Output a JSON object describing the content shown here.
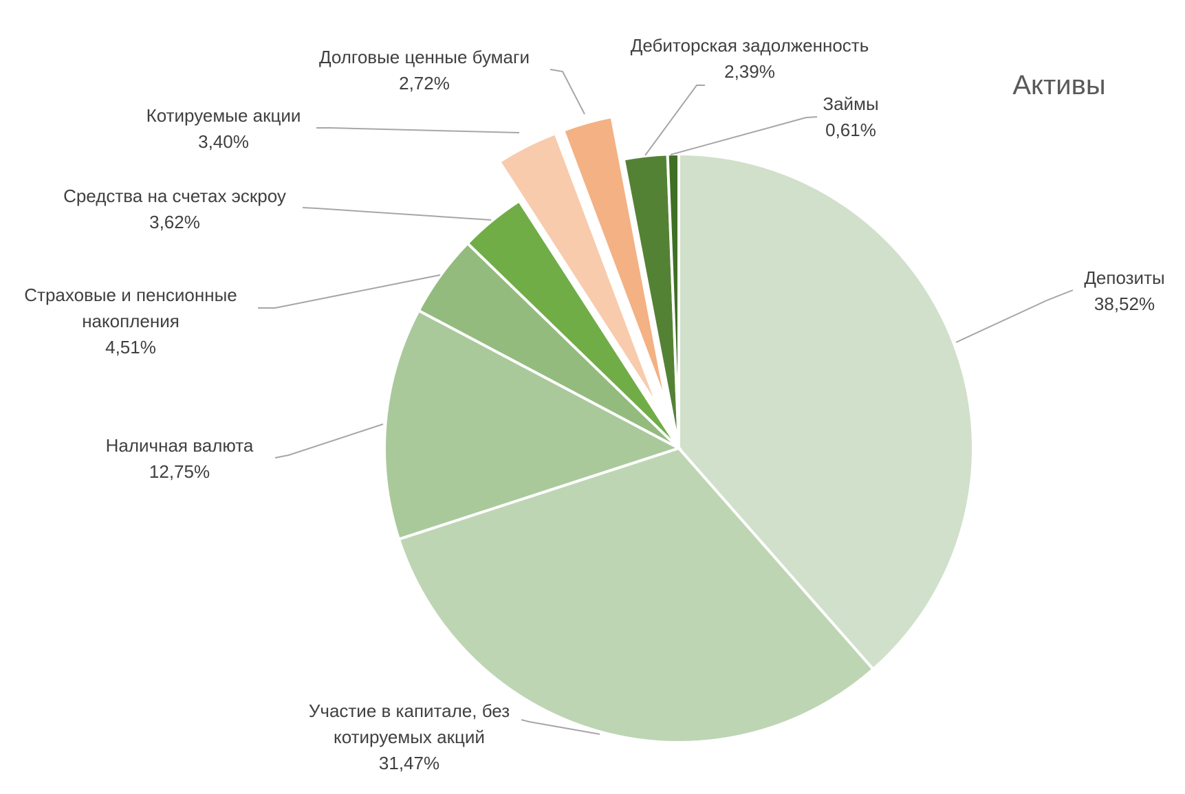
{
  "chart_data": {
    "type": "pie",
    "title": "Активы",
    "slices": [
      {
        "name": "Депозиты",
        "percent_label": "38,52%",
        "value": 38.52,
        "color": "#d0e0ca",
        "exploded": false,
        "name_lines": [
          "Депозиты"
        ]
      },
      {
        "name": "Участие в капитале, без котируемых акций",
        "percent_label": "31,47%",
        "value": 31.47,
        "color": "#bdd5b3",
        "exploded": false,
        "name_lines": [
          "Участие в капитале, без",
          "котируемых акций"
        ]
      },
      {
        "name": "Наличная валюта",
        "percent_label": "12,75%",
        "value": 12.75,
        "color": "#a9c99b",
        "exploded": false,
        "name_lines": [
          "Наличная валюта"
        ]
      },
      {
        "name": "Страховые и пенсионные накопления",
        "percent_label": "4,51%",
        "value": 4.51,
        "color": "#93bb7e",
        "exploded": false,
        "name_lines": [
          "Страховые и пенсионные",
          "накопления"
        ]
      },
      {
        "name": "Средства на счетах эскроу",
        "percent_label": "3,62%",
        "value": 3.62,
        "color": "#70ad47",
        "exploded": false,
        "name_lines": [
          "Средства на счетах эскроу"
        ]
      },
      {
        "name": "Котируемые акции",
        "percent_label": "3,40%",
        "value": 3.4,
        "color": "#f8cbad",
        "exploded": true,
        "name_lines": [
          "Котируемые акции"
        ]
      },
      {
        "name": "Долговые ценные бумаги",
        "percent_label": "2,72%",
        "value": 2.72,
        "color": "#f4b183",
        "exploded": true,
        "name_lines": [
          "Долговые ценные бумаги"
        ]
      },
      {
        "name": "Дебиторская задолженность",
        "percent_label": "2,39%",
        "value": 2.39,
        "color": "#548235",
        "exploded": false,
        "name_lines": [
          "Дебиторская задолженность"
        ]
      },
      {
        "name": "Займы",
        "percent_label": "0,61%",
        "value": 0.61,
        "color": "#3f6f24",
        "exploded": false,
        "name_lines": [
          "Займы"
        ]
      }
    ],
    "start_angle": "12 o'clock",
    "direction": "clockwise",
    "legend": "none"
  }
}
